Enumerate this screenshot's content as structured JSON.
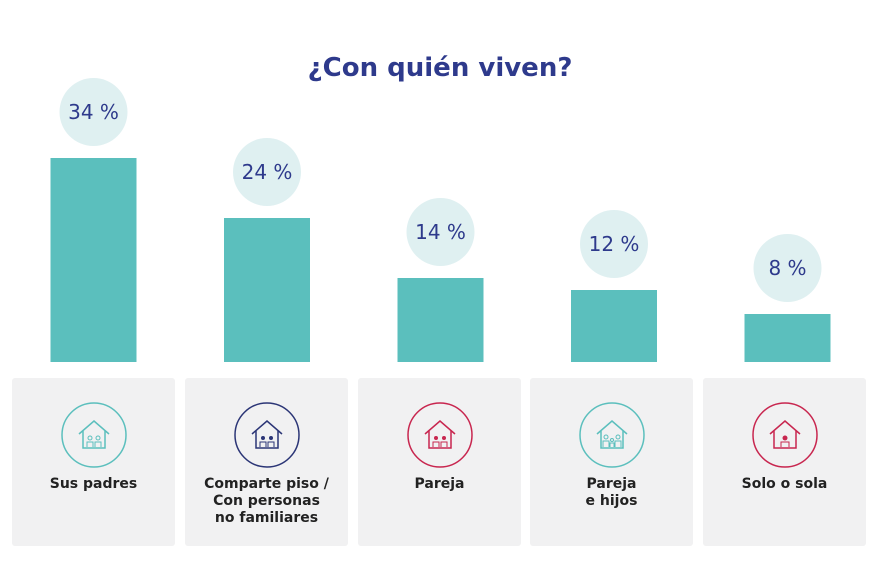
{
  "chart_data": {
    "type": "bar",
    "title": "¿Con quién viven?",
    "categories": [
      "Sus padres",
      "Comparte piso /\nCon personas\nno familiares",
      "Pareja",
      "Pareja\ne hijos",
      "Solo o sola"
    ],
    "values": [
      34,
      24,
      14,
      12,
      8
    ],
    "value_labels": [
      "34 %",
      "24 %",
      "14 %",
      "12 %",
      "8 %"
    ],
    "color": "#5bbfbd"
  }
}
